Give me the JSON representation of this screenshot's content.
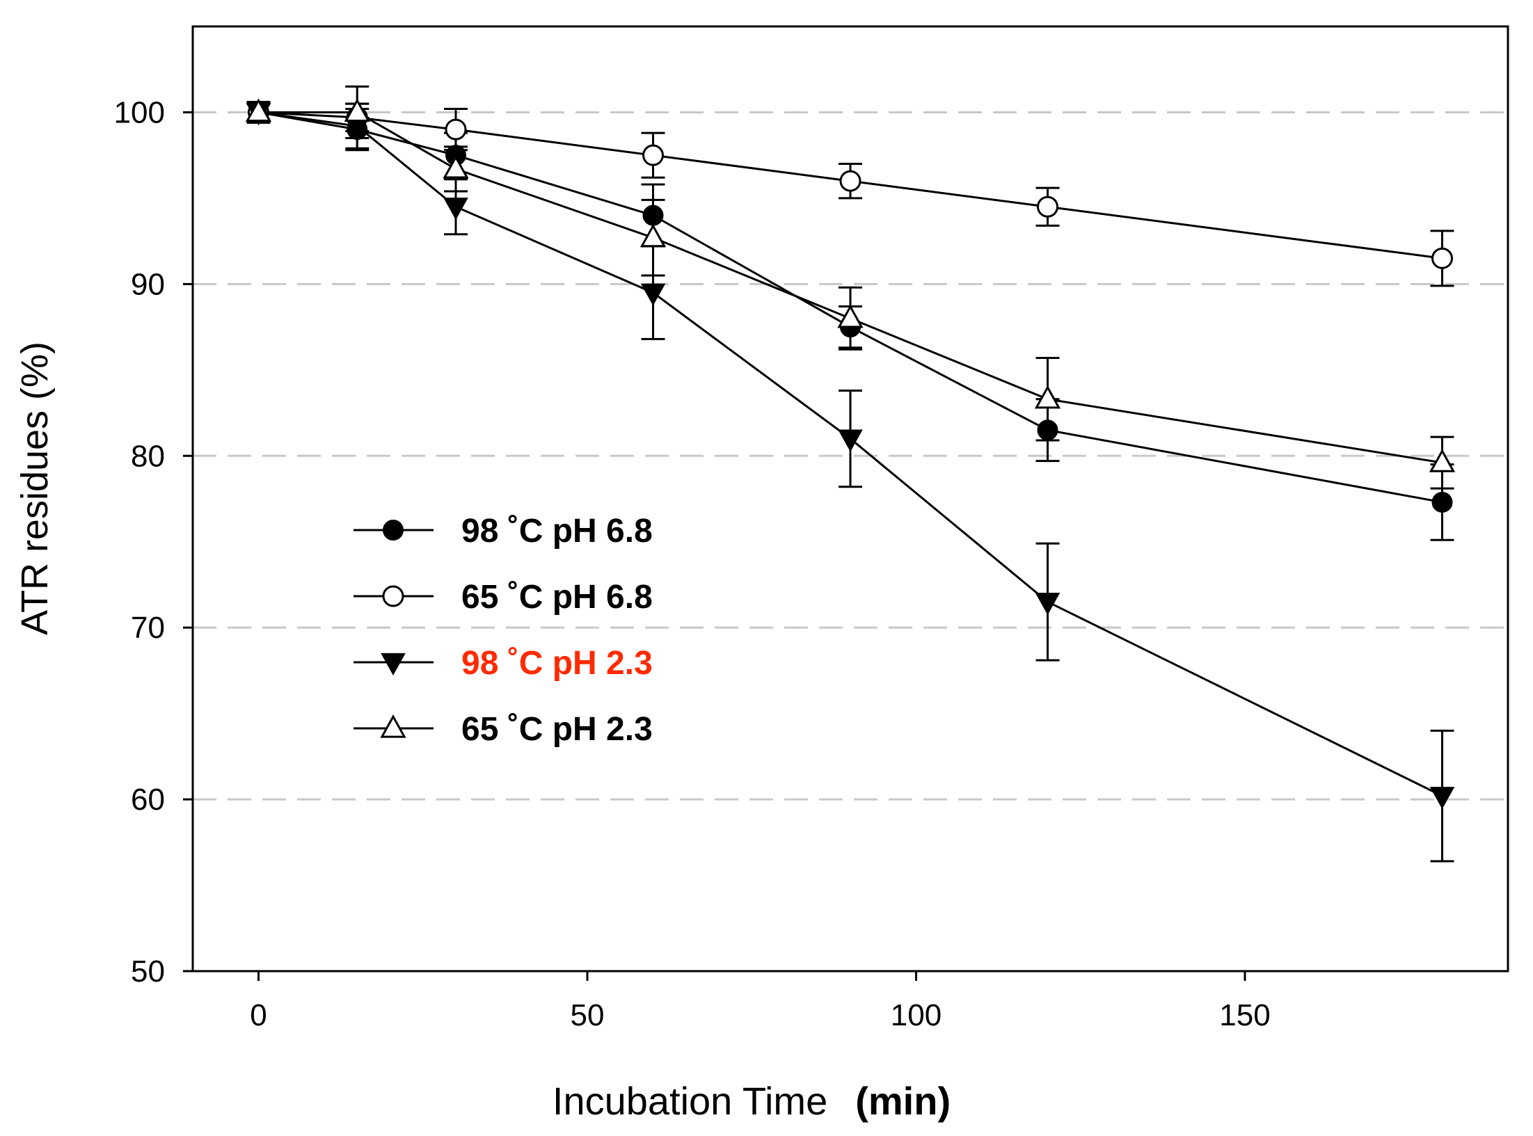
{
  "chart_data": {
    "type": "line",
    "title": "",
    "xlabel": "Incubation Time",
    "xlabel_unit": "(min)",
    "ylabel": "ATR residues (%)",
    "xlim": [
      -10,
      190
    ],
    "ylim": [
      50,
      105
    ],
    "xticks": [
      0,
      50,
      100,
      150
    ],
    "yticks": [
      50,
      60,
      70,
      80,
      90,
      100
    ],
    "gridlines": [
      60,
      70,
      80,
      90,
      100
    ],
    "grid_style": "dashed horizontal",
    "legend_position": "center-left",
    "x": [
      0,
      15,
      30,
      60,
      90,
      120,
      180
    ],
    "series": [
      {
        "name": "98 ˚C pH 6.8",
        "marker": "filled-circle",
        "label_color": "#000000",
        "values": [
          100,
          99,
          97.5,
          94,
          87.5,
          81.5,
          77.3
        ],
        "errors": [
          0.6,
          1.2,
          1.3,
          1.8,
          1.2,
          1.8,
          2.2
        ]
      },
      {
        "name": "65 ˚C pH 6.8",
        "marker": "open-circle",
        "label_color": "#000000",
        "values": [
          100,
          99.7,
          99,
          97.5,
          96,
          94.5,
          91.5
        ],
        "errors": [
          0.5,
          0.8,
          1.2,
          1.3,
          1.0,
          1.1,
          1.6
        ]
      },
      {
        "name": "98 ˚C pH 2.3",
        "marker": "filled-triangle-down",
        "label_color": "#ff2a00",
        "values": [
          100,
          99.2,
          94.5,
          89.5,
          81,
          71.5,
          60.2
        ],
        "errors": [
          0.6,
          1.3,
          1.6,
          2.7,
          2.8,
          3.4,
          3.8
        ]
      },
      {
        "name": "65 ˚C pH 2.3",
        "marker": "open-triangle-up",
        "label_color": "#000000",
        "values": [
          100,
          100,
          96.7,
          92.7,
          88,
          83.3,
          79.6
        ],
        "errors": [
          0.6,
          1.5,
          1.3,
          2.2,
          1.8,
          2.4,
          1.5
        ]
      }
    ]
  }
}
